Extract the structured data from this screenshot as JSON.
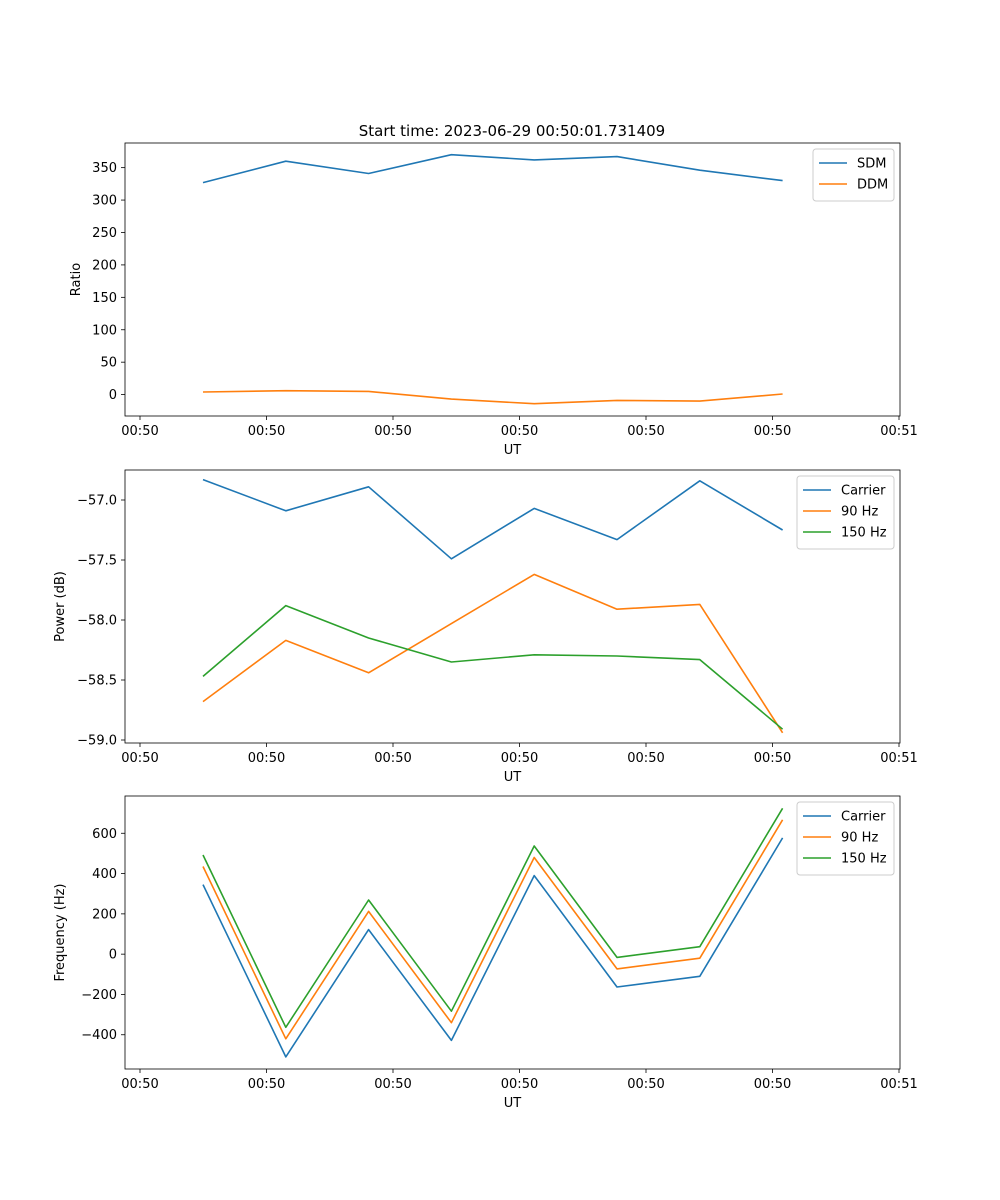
{
  "figure": {
    "title": "Start time: 2023-06-29 00:50:01.731409"
  },
  "chart_data": [
    {
      "type": "line",
      "title": "Start time: 2023-06-29 00:50:01.731409",
      "xlabel": "UT",
      "ylabel": "Ratio",
      "x_tick_labels": [
        "00:50",
        "00:50",
        "00:50",
        "00:50",
        "00:50",
        "00:50",
        "00:51"
      ],
      "y_ticks": [
        0,
        50,
        100,
        150,
        200,
        250,
        300,
        350
      ],
      "ylim": [
        -33,
        388
      ],
      "grid": false,
      "legend_position": "top-right",
      "series": [
        {
          "name": "SDM",
          "color": "#1f77b4",
          "values": [
            327,
            360,
            341,
            370,
            362,
            367,
            346,
            330
          ]
        },
        {
          "name": "DDM",
          "color": "#ff7f0e",
          "values": [
            4,
            6,
            5,
            -7,
            -14,
            -9,
            -10,
            1
          ]
        }
      ]
    },
    {
      "type": "line",
      "title": "",
      "xlabel": "UT",
      "ylabel": "Power (dB)",
      "x_tick_labels": [
        "00:50",
        "00:50",
        "00:50",
        "00:50",
        "00:50",
        "00:50",
        "00:51"
      ],
      "y_ticks": [
        -57.0,
        -57.5,
        -58.0,
        -58.5,
        -59.0
      ],
      "y_tick_labels": [
        "−57.0",
        "−57.5",
        "−58.0",
        "−58.5",
        "−59.0"
      ],
      "ylim": [
        -59.025,
        -56.75
      ],
      "grid": false,
      "legend_position": "top-right",
      "series": [
        {
          "name": "Carrier",
          "color": "#1f77b4",
          "values": [
            -56.83,
            -57.09,
            -56.89,
            -57.49,
            -57.07,
            -57.33,
            -56.84,
            -57.25
          ]
        },
        {
          "name": "90 Hz",
          "color": "#ff7f0e",
          "values": [
            -58.68,
            -58.17,
            -58.44,
            -58.03,
            -57.62,
            -57.91,
            -57.87,
            -58.94
          ]
        },
        {
          "name": "150 Hz",
          "color": "#2ca02c",
          "values": [
            -58.47,
            -57.88,
            -58.15,
            -58.35,
            -58.29,
            -58.3,
            -58.33,
            -58.91
          ]
        }
      ]
    },
    {
      "type": "line",
      "title": "",
      "xlabel": "UT",
      "ylabel": "Frequency (Hz)",
      "x_tick_labels": [
        "00:50",
        "00:50",
        "00:50",
        "00:50",
        "00:50",
        "00:50",
        "00:51"
      ],
      "y_ticks": [
        600,
        400,
        200,
        0,
        -200,
        -400
      ],
      "y_tick_labels": [
        "600",
        "400",
        "200",
        "0",
        "−200",
        "−400"
      ],
      "ylim": [
        -570,
        785
      ],
      "grid": false,
      "legend_position": "top-right",
      "series": [
        {
          "name": "Carrier",
          "color": "#1f77b4",
          "values": [
            345,
            -510,
            122,
            -428,
            390,
            -163,
            -110,
            577
          ]
        },
        {
          "name": "90 Hz",
          "color": "#ff7f0e",
          "values": [
            435,
            -420,
            212,
            -340,
            480,
            -73,
            -20,
            667
          ]
        },
        {
          "name": "150 Hz",
          "color": "#2ca02c",
          "values": [
            492,
            -363,
            269,
            -283,
            537,
            -16,
            37,
            724
          ]
        }
      ]
    }
  ]
}
